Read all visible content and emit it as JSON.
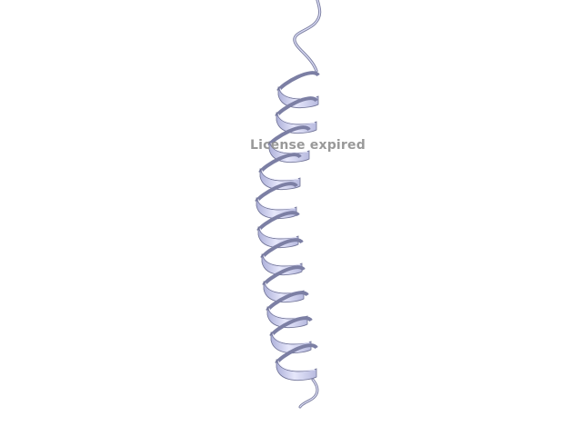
{
  "viewer": {
    "watermark_text": "License expired",
    "background_color": "#ffffff",
    "ribbon_color": "#c9cbee",
    "ribbon_shadow_color": "#8f92b8",
    "ribbon_edge_color": "#6f7295",
    "watermark_color": "#8f8f8f"
  }
}
